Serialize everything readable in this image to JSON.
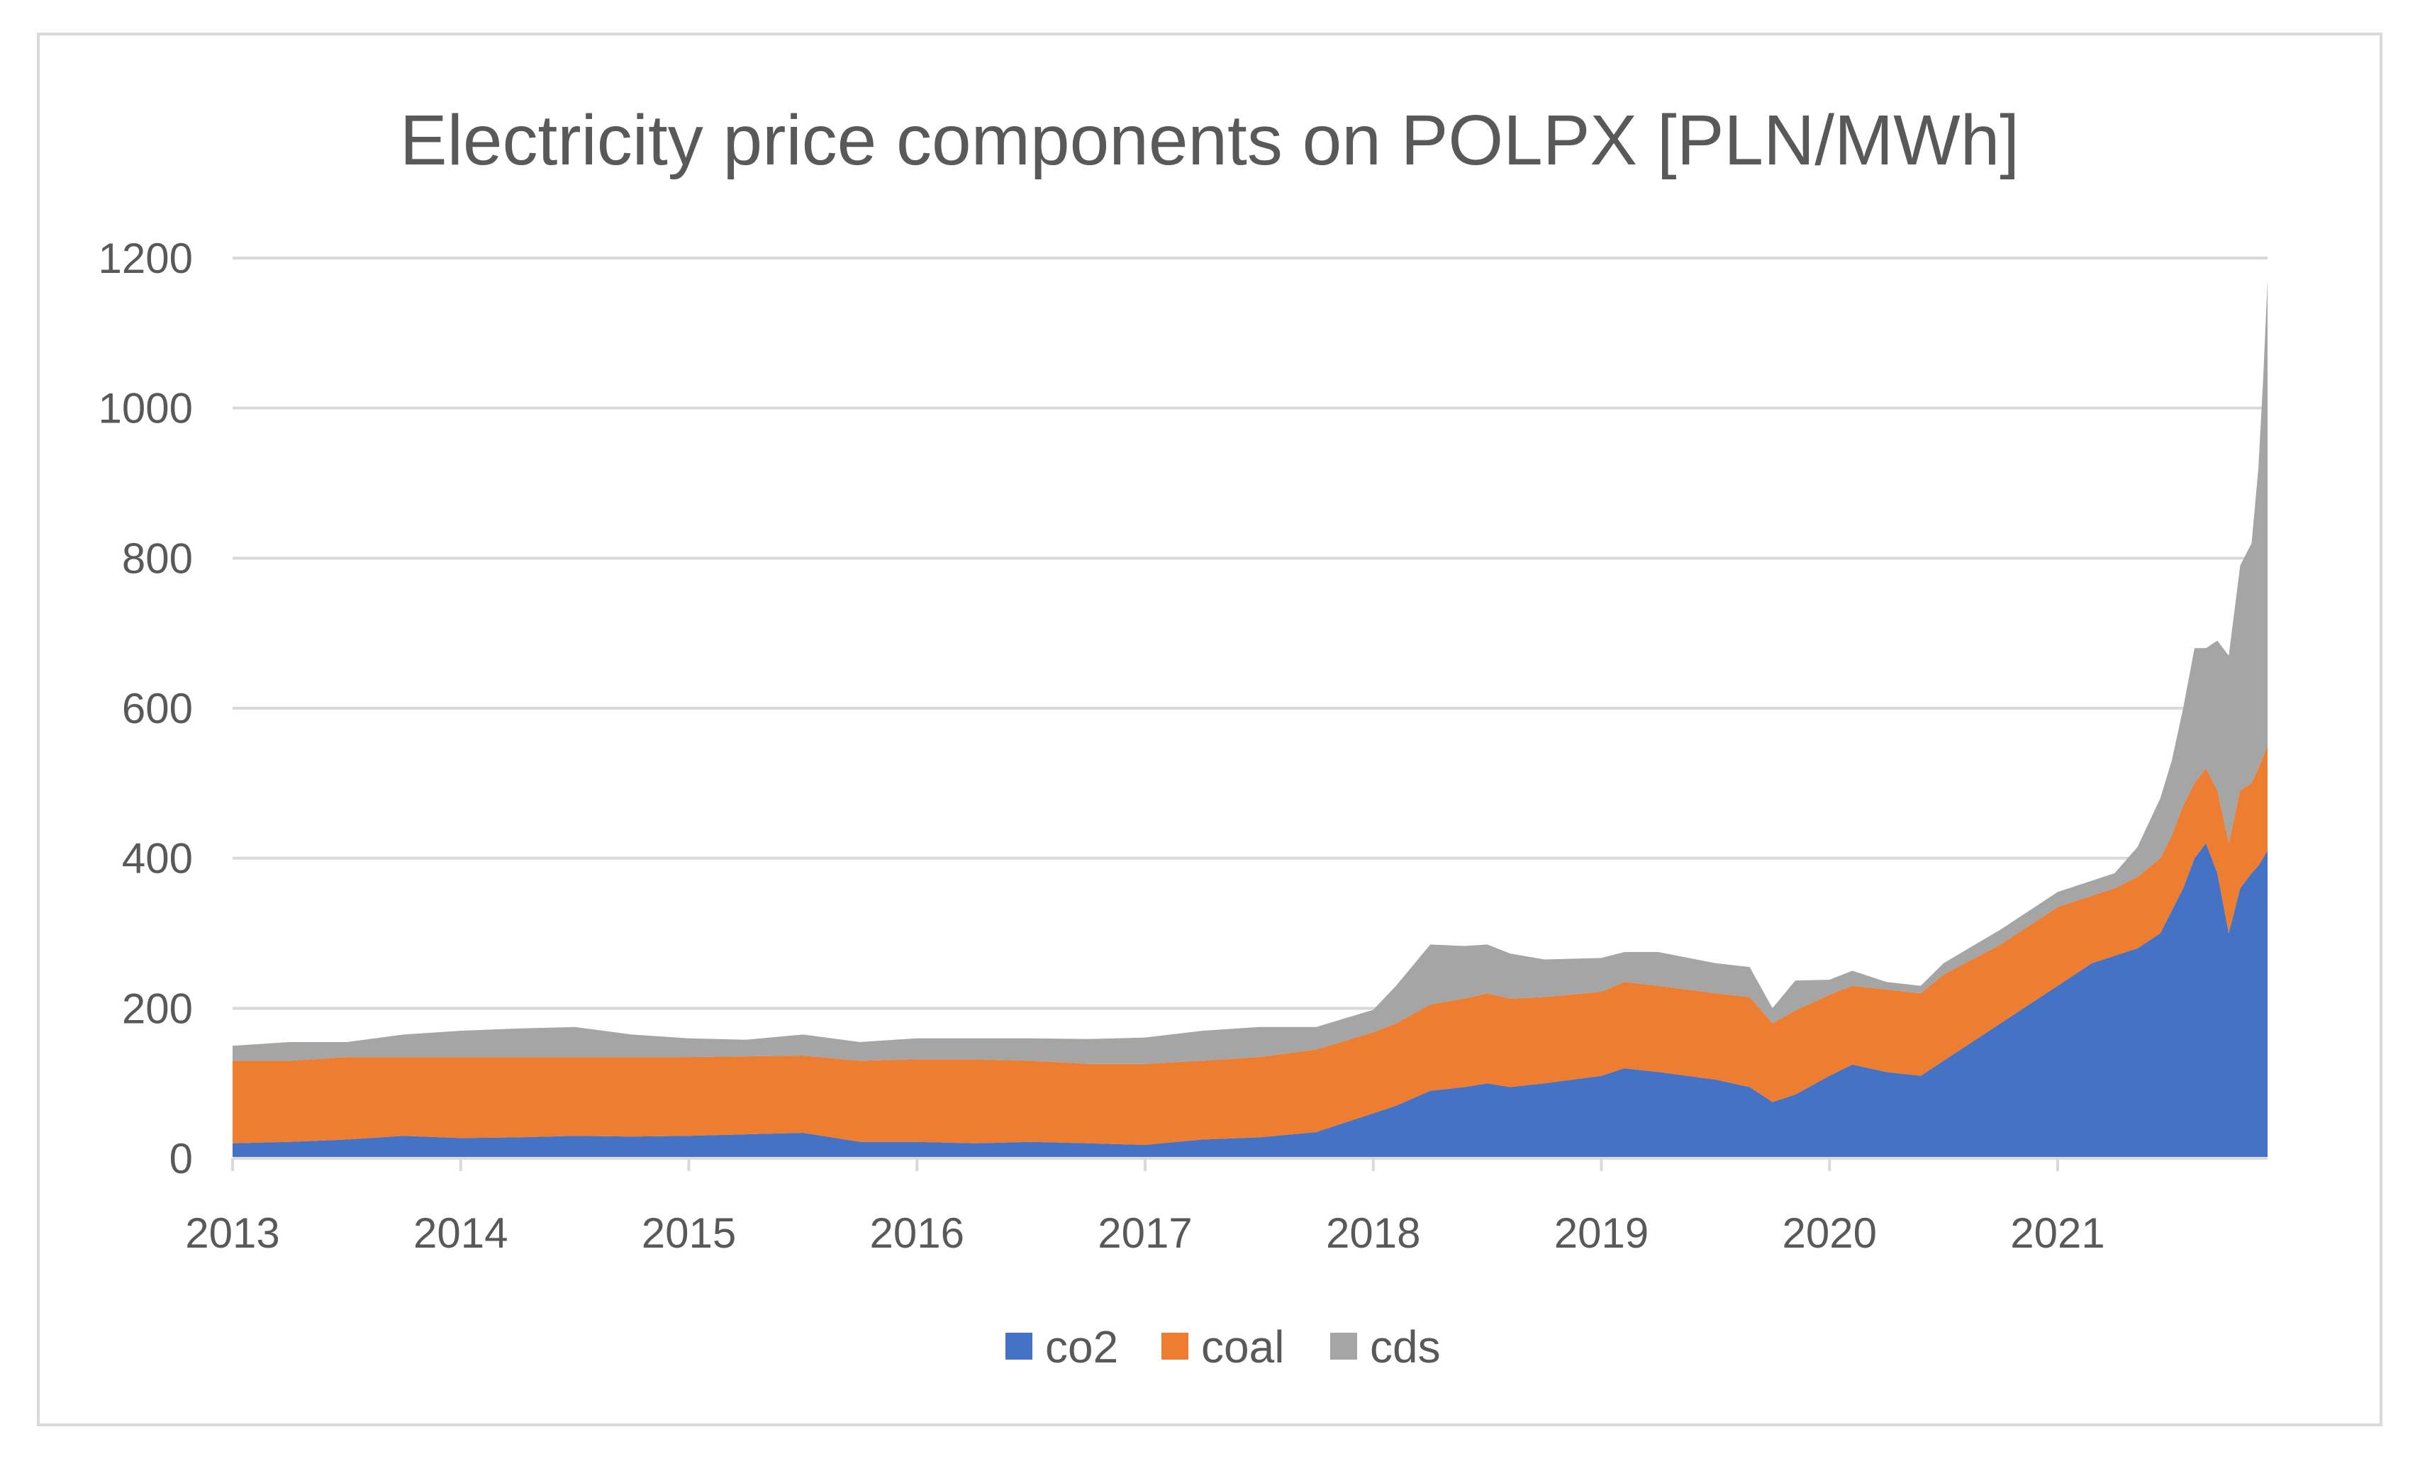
{
  "chart_data": {
    "type": "area",
    "stacked": true,
    "title": "Electricity price components on POLPX [PLN/MWh]",
    "xlabel": "",
    "ylabel": "",
    "x_tick_labels": [
      "2013",
      "2014",
      "2015",
      "2016",
      "2017",
      "2018",
      "2019",
      "2020",
      "2021"
    ],
    "y_tick_labels": [
      "0",
      "200",
      "400",
      "600",
      "800",
      "1000",
      "1200"
    ],
    "xlim": [
      2013.0,
      2021.92
    ],
    "ylim": [
      0,
      1200
    ],
    "grid": "horizontal",
    "legend_position": "bottom",
    "x": [
      2013.0,
      2013.25,
      2013.5,
      2013.75,
      2014.0,
      2014.25,
      2014.5,
      2014.75,
      2015.0,
      2015.25,
      2015.5,
      2015.75,
      2016.0,
      2016.25,
      2016.5,
      2016.75,
      2017.0,
      2017.25,
      2017.5,
      2017.75,
      2018.0,
      2018.1,
      2018.25,
      2018.4,
      2018.5,
      2018.6,
      2018.75,
      2019.0,
      2019.1,
      2019.25,
      2019.5,
      2019.65,
      2019.75,
      2019.85,
      2020.0,
      2020.1,
      2020.25,
      2020.4,
      2020.5,
      2020.75,
      2021.0,
      2021.15,
      2021.25,
      2021.35,
      2021.45,
      2021.5,
      2021.55,
      2021.6,
      2021.65,
      2021.7,
      2021.75,
      2021.8,
      2021.85,
      2021.88,
      2021.9,
      2021.92
    ],
    "series": [
      {
        "name": "co2",
        "color": "#4472c4",
        "values": [
          20,
          22,
          25,
          30,
          27,
          28,
          30,
          29,
          30,
          32,
          34,
          22,
          22,
          20,
          22,
          20,
          18,
          25,
          28,
          35,
          60,
          70,
          90,
          95,
          100,
          95,
          100,
          110,
          120,
          115,
          105,
          95,
          75,
          85,
          110,
          125,
          115,
          110,
          130,
          180,
          230,
          260,
          270,
          280,
          300,
          330,
          360,
          400,
          420,
          380,
          300,
          360,
          380,
          390,
          400,
          410
        ]
      },
      {
        "name": "coal",
        "color": "#ed7d31",
        "values": [
          110,
          108,
          110,
          105,
          108,
          107,
          105,
          106,
          105,
          104,
          103,
          108,
          110,
          112,
          108,
          106,
          108,
          105,
          107,
          110,
          108,
          110,
          115,
          118,
          120,
          118,
          115,
          112,
          115,
          115,
          115,
          120,
          105,
          112,
          108,
          105,
          110,
          110,
          115,
          105,
          105,
          90,
          90,
          95,
          100,
          100,
          110,
          100,
          100,
          110,
          120,
          130,
          120,
          130,
          135,
          140
        ]
      },
      {
        "name": "cds",
        "color": "#a5a5a5",
        "values": [
          20,
          25,
          20,
          30,
          35,
          38,
          40,
          30,
          25,
          22,
          28,
          25,
          28,
          28,
          30,
          33,
          35,
          40,
          40,
          30,
          30,
          50,
          80,
          70,
          65,
          60,
          50,
          45,
          40,
          45,
          40,
          40,
          20,
          40,
          20,
          20,
          10,
          10,
          15,
          20,
          20,
          20,
          20,
          40,
          80,
          100,
          130,
          180,
          160,
          200,
          250,
          300,
          320,
          400,
          500,
          620
        ]
      }
    ]
  }
}
